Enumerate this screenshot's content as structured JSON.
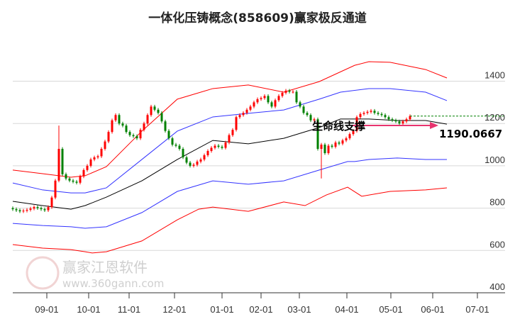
{
  "chart_data": {
    "type": "candlestick",
    "title": "一体化压铸概念(858609)赢家极反通道",
    "ylim": [
      400,
      1500
    ],
    "yticks": [
      400,
      600,
      800,
      1000,
      1200,
      1400
    ],
    "xlim": [
      0,
      138.4
    ],
    "xticks": [
      {
        "t": 9.6,
        "label": "09-01"
      },
      {
        "t": 21.4,
        "label": "10-01"
      },
      {
        "t": 32.8,
        "label": "11-01"
      },
      {
        "t": 45.6,
        "label": "12-01"
      },
      {
        "t": 59,
        "label": "01-01"
      },
      {
        "t": 70,
        "label": "02-01"
      },
      {
        "t": 80.8,
        "label": "03-01"
      },
      {
        "t": 94.2,
        "label": "04-01"
      },
      {
        "t": 106.6,
        "label": "05-01"
      },
      {
        "t": 118.4,
        "label": "06-01"
      },
      {
        "t": 131,
        "label": "07-01"
      }
    ],
    "first_open": 800,
    "closes": [
      795,
      790,
      785,
      788,
      792,
      798,
      805,
      800,
      795,
      790,
      805,
      850,
      930,
      1080,
      960,
      940,
      930,
      925,
      920,
      950,
      980,
      1000,
      1030,
      1040,
      1045,
      1080,
      1115,
      1160,
      1215,
      1240,
      1200,
      1190,
      1160,
      1145,
      1140,
      1130,
      1170,
      1200,
      1240,
      1280,
      1265,
      1250,
      1210,
      1165,
      1130,
      1100,
      1095,
      1080,
      1040,
      1015,
      1000,
      1005,
      1020,
      1030,
      1050,
      1070,
      1085,
      1095,
      1090,
      1085,
      1110,
      1145,
      1170,
      1230,
      1240,
      1250,
      1265,
      1280,
      1300,
      1315,
      1320,
      1330,
      1300,
      1280,
      1310,
      1330,
      1345,
      1355,
      1350,
      1350,
      1300,
      1280,
      1250,
      1240,
      1215,
      1220,
      1080,
      1100,
      1060,
      1095,
      1090,
      1110,
      1105,
      1120,
      1130,
      1150,
      1165,
      1230,
      1245,
      1250,
      1255,
      1260,
      1250,
      1245,
      1240,
      1230,
      1220,
      1215,
      1210,
      1200,
      1210,
      1220,
      1235
    ],
    "wick_overrides": [
      {
        "i": 13,
        "high": 1190
      },
      {
        "i": 87,
        "low": 940
      }
    ],
    "series": [
      {
        "name": "upper-red",
        "color": "#ff0000",
        "points": [
          [
            0,
            980
          ],
          [
            8.4,
            963
          ],
          [
            16.4,
            946
          ],
          [
            20.4,
            953
          ],
          [
            26.4,
            996
          ],
          [
            36.4,
            1164
          ],
          [
            46.4,
            1315
          ],
          [
            56.4,
            1365
          ],
          [
            66.4,
            1382
          ],
          [
            76.4,
            1348
          ],
          [
            86.4,
            1398
          ],
          [
            96.4,
            1475
          ],
          [
            100.4,
            1492
          ],
          [
            106.4,
            1489
          ],
          [
            116.4,
            1455
          ],
          [
            122.4,
            1415
          ]
        ]
      },
      {
        "name": "upper-blue",
        "color": "#3333ff",
        "points": [
          [
            0,
            919
          ],
          [
            8.4,
            886
          ],
          [
            16.4,
            872
          ],
          [
            20.4,
            872
          ],
          [
            26.4,
            896
          ],
          [
            36.4,
            1030
          ],
          [
            46.4,
            1164
          ],
          [
            56.4,
            1231
          ],
          [
            66.4,
            1248
          ],
          [
            76.4,
            1264
          ],
          [
            86.4,
            1315
          ],
          [
            92.4,
            1348
          ],
          [
            100.4,
            1365
          ],
          [
            106.4,
            1365
          ],
          [
            116.4,
            1348
          ],
          [
            122.4,
            1308
          ]
        ]
      },
      {
        "name": "life-line",
        "color": "#000000",
        "points": [
          [
            0,
            832
          ],
          [
            8.4,
            812
          ],
          [
            16.4,
            795
          ],
          [
            20.4,
            812
          ],
          [
            26.4,
            852
          ],
          [
            36.4,
            929
          ],
          [
            46.4,
            1030
          ],
          [
            56.4,
            1120
          ],
          [
            66.4,
            1104
          ],
          [
            76.4,
            1130
          ],
          [
            86.4,
            1181
          ],
          [
            92.4,
            1221
          ],
          [
            100.4,
            1221
          ],
          [
            108.4,
            1214
          ],
          [
            116.4,
            1214
          ],
          [
            122.4,
            1197
          ]
        ]
      },
      {
        "name": "lower-blue",
        "color": "#3333ff",
        "points": [
          [
            0,
            728
          ],
          [
            8.4,
            718
          ],
          [
            16.4,
            712
          ],
          [
            20.4,
            705
          ],
          [
            26.4,
            712
          ],
          [
            36.4,
            779
          ],
          [
            46.4,
            879
          ],
          [
            56.4,
            929
          ],
          [
            66.4,
            913
          ],
          [
            76.4,
            929
          ],
          [
            86.4,
            980
          ],
          [
            94.4,
            1020
          ],
          [
            96.4,
            1020
          ],
          [
            100.4,
            1030
          ],
          [
            108.4,
            1037
          ],
          [
            116.4,
            1030
          ],
          [
            122.4,
            1030
          ]
        ]
      },
      {
        "name": "lower-red",
        "color": "#ff0000",
        "points": [
          [
            0,
            628
          ],
          [
            8.4,
            611
          ],
          [
            16.4,
            604
          ],
          [
            20.4,
            594
          ],
          [
            22.4,
            588
          ],
          [
            26.4,
            594
          ],
          [
            36.4,
            645
          ],
          [
            46.4,
            745
          ],
          [
            52.4,
            795
          ],
          [
            56.4,
            805
          ],
          [
            66.4,
            785
          ],
          [
            76.4,
            829
          ],
          [
            82.4,
            812
          ],
          [
            88.4,
            862
          ],
          [
            94.4,
            899
          ],
          [
            98.4,
            856
          ],
          [
            106.4,
            879
          ],
          [
            116.4,
            886
          ],
          [
            122.4,
            896
          ]
        ]
      }
    ],
    "support_level": 1235,
    "annotation": {
      "label": "生命线支撑",
      "value": "1190.0667"
    },
    "colors": {
      "up": "#ff0000",
      "down": "#008000",
      "arrow": "#e8336e",
      "grid": "#d8d8d8"
    }
  },
  "watermark": {
    "logo_chars": "江赢恩家",
    "brand": "赢家江恩软件",
    "url": "www.360gann.com"
  }
}
